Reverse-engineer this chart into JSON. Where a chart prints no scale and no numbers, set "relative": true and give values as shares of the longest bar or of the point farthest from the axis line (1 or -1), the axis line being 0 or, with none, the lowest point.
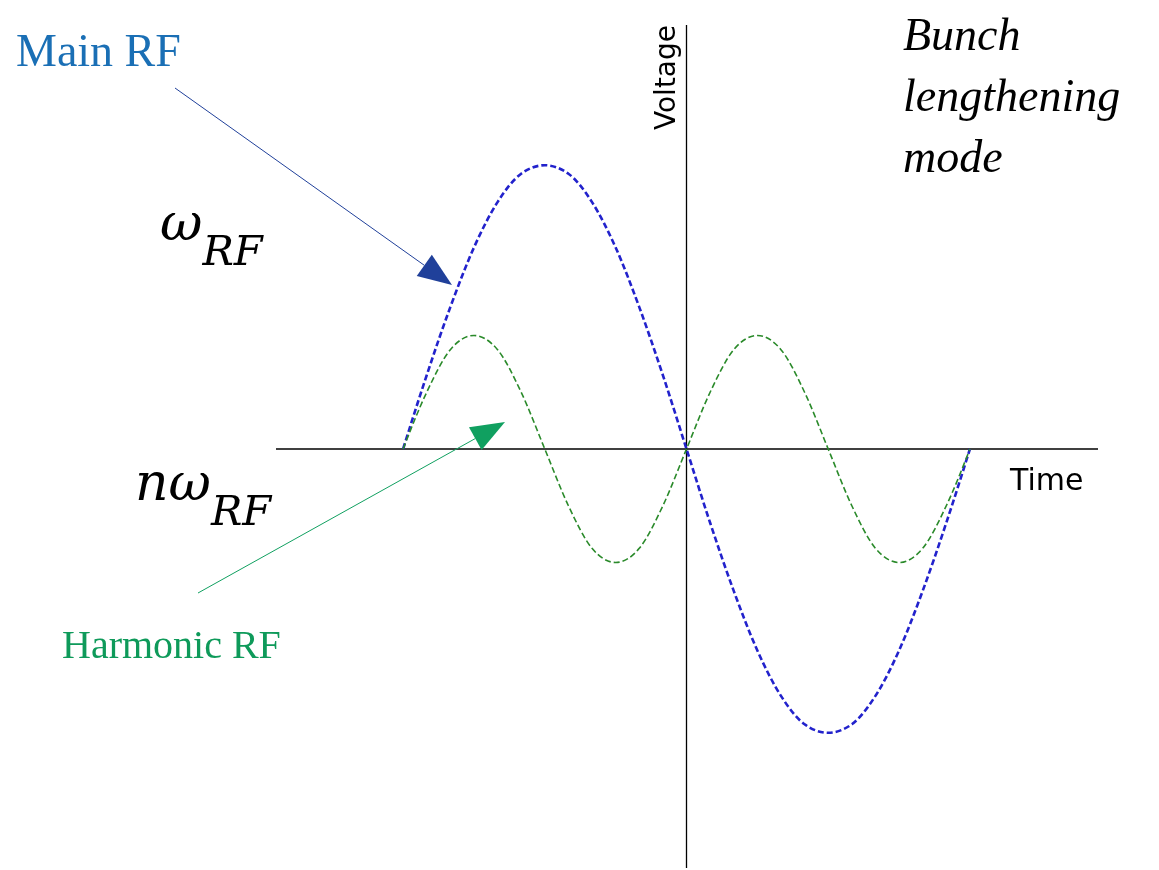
{
  "chart_data": {
    "type": "line",
    "title": "Bunch lengthening mode",
    "xlabel": "Time",
    "ylabel": "Voltage",
    "relative": true,
    "line_style": "dashed",
    "marker": "none",
    "annotations": [
      "ω$_{RF}$",
      "nω$_{RF}$"
    ],
    "categories": [
      null,
      null,
      null,
      null,
      null,
      null,
      null,
      null,
      null,
      null,
      null,
      null,
      null,
      null,
      null,
      null,
      null,
      null,
      null,
      null,
      null,
      null,
      null,
      null,
      null,
      null,
      null,
      null,
      null,
      null,
      null,
      null,
      null,
      null,
      null
    ],
    "series": [
      {
        "name": "Main RF",
        "color": "#2222cc",
        "values": [
          null,
          null,
          null,
          null,
          null,
          0,
          0.26,
          0.5,
          0.71,
          0.87,
          0.97,
          1,
          0.97,
          0.87,
          0.71,
          0.5,
          0.26,
          0,
          -0.26,
          -0.5,
          -0.71,
          -0.87,
          -0.97,
          -1,
          -0.97,
          -0.87,
          -0.71,
          -0.5,
          -0.26,
          0,
          null,
          null,
          null,
          null,
          null
        ]
      },
      {
        "name": "Harmonic RF",
        "color": "#2a8a2a",
        "values": [
          null,
          null,
          null,
          null,
          null,
          0,
          0.2,
          0.35,
          0.4,
          0.35,
          0.2,
          0,
          -0.2,
          -0.35,
          -0.4,
          -0.35,
          -0.2,
          0,
          0.2,
          0.35,
          0.4,
          0.35,
          0.2,
          0,
          -0.2,
          -0.35,
          -0.4,
          -0.35,
          -0.2,
          0,
          null,
          null,
          null,
          null,
          null
        ]
      }
    ]
  }
}
